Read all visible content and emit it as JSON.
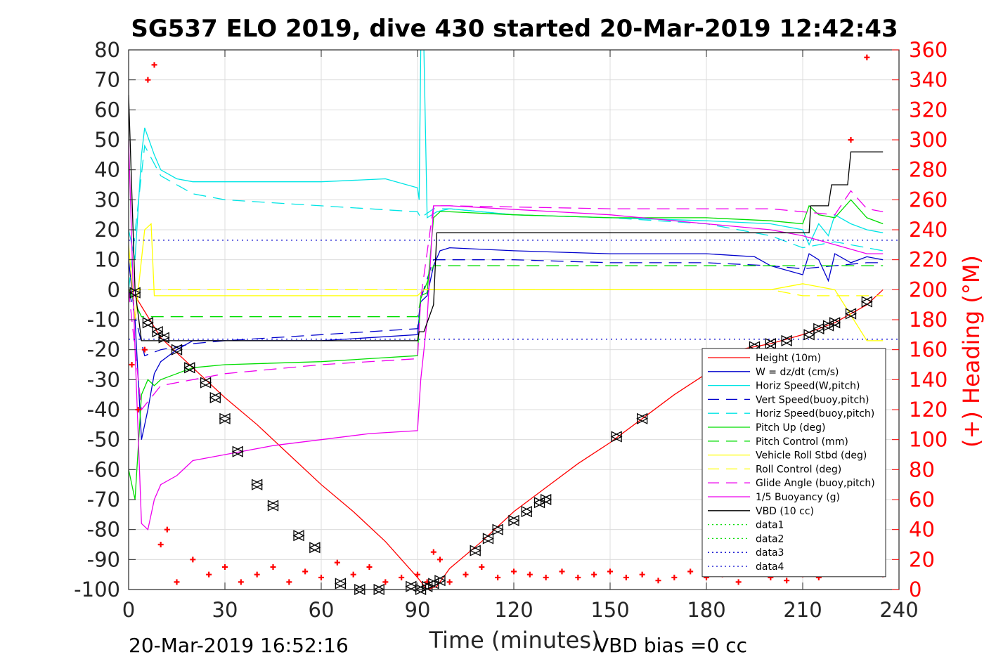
{
  "chart_data": {
    "type": "line",
    "title": "SG537 ELO 2019, dive 430 started 20-Mar-2019 12:42:43",
    "xlabel": "Time (minutes)",
    "ylabel_right": "(+) Heading (°M)",
    "xlim": [
      0,
      240
    ],
    "ylim": [
      -100,
      80
    ],
    "ylim_right": [
      0,
      360
    ],
    "grid": true,
    "legend_position": "lower-right",
    "x_ticks": [
      "0",
      "30",
      "60",
      "90",
      "120",
      "150",
      "180",
      "210",
      "240"
    ],
    "y_ticks_left": [
      "80",
      "70",
      "60",
      "50",
      "40",
      "30",
      "20",
      "10",
      "0",
      "-10",
      "-20",
      "-30",
      "-40",
      "-50",
      "-60",
      "-70",
      "-80",
      "-90",
      "-100"
    ],
    "y_ticks_right": [
      "360",
      "340",
      "320",
      "300",
      "280",
      "260",
      "240",
      "220",
      "200",
      "180",
      "160",
      "140",
      "120",
      "100",
      "80",
      "60",
      "40",
      "20",
      "0"
    ],
    "series": [
      {
        "name": "Height (10m)",
        "color": "#ff0000",
        "style": "solid",
        "x": [
          0,
          2,
          10,
          20,
          30,
          40,
          50,
          60,
          70,
          80,
          90,
          93,
          96,
          100,
          110,
          120,
          130,
          140,
          150,
          160,
          170,
          180,
          190,
          200,
          210,
          220,
          230,
          235
        ],
        "y": [
          0,
          -2,
          -16,
          -26,
          -36,
          -45,
          -55,
          -65,
          -74,
          -84,
          -96,
          -100,
          -99,
          -93,
          -84,
          -74,
          -66,
          -58,
          -51,
          -43,
          -35,
          -28,
          -20,
          -18,
          -15,
          -11,
          -5,
          0
        ]
      },
      {
        "name": "W = dz/dt (cm/s)",
        "color": "#0000cc",
        "style": "solid",
        "x": [
          0,
          2,
          4,
          6,
          8,
          10,
          15,
          20,
          30,
          60,
          90,
          91,
          93,
          95,
          97,
          100,
          120,
          150,
          180,
          195,
          200,
          210,
          212,
          215,
          218,
          220,
          225,
          230,
          235
        ],
        "y": [
          10,
          -10,
          -50,
          -40,
          -28,
          -24,
          -20,
          -17,
          -17,
          -17,
          -15,
          -4,
          -2,
          8,
          13,
          14,
          13,
          12,
          12,
          11,
          8,
          5,
          12,
          10,
          3,
          12,
          9,
          11,
          10
        ]
      },
      {
        "name": "Horiz Speed(W,pitch)",
        "color": "#00e5e5",
        "style": "solid",
        "x": [
          0,
          2,
          4,
          5,
          8,
          10,
          15,
          20,
          30,
          60,
          80,
          90,
          90.5,
          91,
          92,
          93,
          96,
          100,
          120,
          150,
          180,
          200,
          210,
          212,
          215,
          218,
          220,
          225,
          230,
          235
        ],
        "y": [
          20,
          10,
          45,
          54,
          45,
          40,
          37,
          36,
          36,
          36,
          37,
          34,
          30,
          80,
          80,
          24,
          26,
          27,
          25,
          24,
          23,
          22,
          20,
          15,
          22,
          18,
          25,
          22,
          20,
          19
        ]
      },
      {
        "name": "Vert Speed(buoy,pitch)",
        "color": "#0000cc",
        "style": "dashed",
        "x": [
          0,
          5,
          10,
          20,
          30,
          60,
          90,
          91,
          95,
          100,
          120,
          150,
          180,
          200,
          210,
          220,
          230,
          235
        ],
        "y": [
          0,
          -22,
          -20,
          -18,
          -17,
          -15,
          -13,
          -3,
          10,
          10,
          10,
          9,
          9,
          8,
          7,
          8,
          9,
          9
        ]
      },
      {
        "name": "Horiz Speed(buoy,pitch)",
        "color": "#00e5e5",
        "style": "dashed",
        "x": [
          0,
          5,
          10,
          20,
          30,
          60,
          90,
          91,
          95,
          100,
          120,
          150,
          180,
          200,
          210,
          220,
          230,
          235
        ],
        "y": [
          0,
          48,
          38,
          32,
          30,
          28,
          26,
          24,
          27,
          27,
          25,
          24,
          22,
          18,
          14,
          16,
          14,
          13
        ]
      },
      {
        "name": "Pitch Up (deg)",
        "color": "#00dd00",
        "style": "solid",
        "x": [
          0,
          2,
          4,
          6,
          8,
          10,
          15,
          20,
          30,
          60,
          90,
          91,
          93,
          95,
          97,
          100,
          120,
          150,
          180,
          200,
          210,
          212,
          215,
          220,
          225,
          230,
          235
        ],
        "y": [
          -60,
          -70,
          -35,
          -30,
          -32,
          -30,
          -28,
          -26,
          -25,
          -24,
          -22,
          -2,
          -1,
          24,
          26,
          26,
          25,
          24,
          24,
          23,
          22,
          28,
          25,
          24,
          30,
          24,
          22
        ]
      },
      {
        "name": "Pitch Control (mm)",
        "color": "#00dd00",
        "style": "dashed",
        "x": [
          0,
          4,
          10,
          20,
          60,
          90,
          91,
          95,
          100,
          150,
          200,
          210,
          220,
          235
        ],
        "y": [
          0,
          -9,
          -9,
          -9,
          -9,
          -9,
          -3,
          8,
          8,
          8,
          8,
          8,
          8,
          8
        ]
      },
      {
        "name": "Vehicle Roll Stbd (deg)",
        "color": "#ffff00",
        "style": "solid",
        "x": [
          0,
          2,
          3,
          5,
          7,
          8,
          10,
          15,
          20,
          30,
          60,
          90,
          92,
          95,
          100,
          150,
          200,
          210,
          220,
          230,
          235
        ],
        "y": [
          15,
          -10,
          0,
          20,
          22,
          -2,
          -2,
          -2,
          -2,
          -2,
          -2,
          -2,
          0,
          0,
          0,
          0,
          0,
          2,
          0,
          -17,
          -17
        ]
      },
      {
        "name": "Roll Control (deg)",
        "color": "#ffff00",
        "style": "dashed",
        "x": [
          0,
          20,
          60,
          90,
          95,
          150,
          200,
          210,
          235
        ],
        "y": [
          0,
          0,
          0,
          0,
          0,
          0,
          0,
          -2,
          -2
        ]
      },
      {
        "name": "Glide Angle (buoy,pitch)",
        "color": "#ee00ee",
        "style": "dashed",
        "x": [
          0,
          4,
          10,
          20,
          30,
          60,
          90,
          91,
          95,
          100,
          150,
          200,
          210,
          220,
          225,
          230,
          235
        ],
        "y": [
          0,
          -40,
          -32,
          -30,
          -28,
          -25,
          -23,
          -3,
          28,
          28,
          27,
          27,
          26,
          25,
          33,
          27,
          26
        ]
      },
      {
        "name": "1/5 Buoyancy (g)",
        "color": "#ee00ee",
        "style": "solid",
        "x": [
          0,
          2,
          4,
          6,
          8,
          10,
          15,
          20,
          30,
          45,
          60,
          75,
          90,
          91,
          93,
          95,
          100,
          150,
          200,
          210,
          220,
          230,
          235
        ],
        "y": [
          50,
          -20,
          -78,
          -80,
          -70,
          -65,
          -62,
          -57,
          -55,
          -52,
          -50,
          -48,
          -47,
          -30,
          -10,
          28,
          28,
          25,
          20,
          18,
          15,
          12,
          12
        ]
      },
      {
        "name": "VBD (10 cc)",
        "color": "#000000",
        "style": "solid",
        "x": [
          0,
          2,
          4,
          20,
          90,
          90.5,
          92,
          95,
          96,
          120,
          150,
          180,
          205,
          212,
          212.5,
          218,
          219,
          224,
          225,
          230,
          235
        ],
        "y": [
          65,
          0,
          -17,
          -17,
          -17,
          -14,
          -14,
          -5,
          19,
          19,
          19,
          19,
          19,
          19,
          28,
          28,
          35,
          35,
          46,
          46,
          46
        ]
      },
      {
        "name": "data1",
        "color": "#00dd00",
        "style": "dotted",
        "x": [],
        "y": []
      },
      {
        "name": "data2",
        "color": "#00dd00",
        "style": "dotted",
        "x": [],
        "y": []
      },
      {
        "name": "data3",
        "color": "#0000cc",
        "style": "dotted",
        "x": [
          0,
          240
        ],
        "y": [
          16.5,
          16.5
        ]
      },
      {
        "name": "data4",
        "color": "#0000cc",
        "style": "dotted",
        "x": [
          0,
          240
        ],
        "y": [
          -16.5,
          -16.5
        ]
      }
    ],
    "heading": {
      "axis": "right",
      "color": "#ff0000",
      "marker": "+",
      "x": [
        1,
        3,
        5,
        6,
        8,
        10,
        12,
        15,
        20,
        25,
        30,
        35,
        40,
        45,
        50,
        55,
        60,
        65,
        70,
        75,
        80,
        85,
        90,
        93,
        95,
        97,
        100,
        105,
        110,
        115,
        120,
        125,
        130,
        135,
        140,
        145,
        150,
        155,
        160,
        165,
        170,
        175,
        180,
        185,
        190,
        195,
        200,
        205,
        210,
        215,
        220,
        225,
        230,
        235
      ],
      "y": [
        150,
        120,
        160,
        340,
        350,
        30,
        40,
        5,
        20,
        10,
        15,
        5,
        10,
        15,
        5,
        12,
        8,
        18,
        10,
        15,
        5,
        8,
        10,
        5,
        25,
        20,
        5,
        10,
        15,
        8,
        12,
        10,
        8,
        12,
        8,
        10,
        12,
        8,
        10,
        6,
        8,
        12,
        8,
        10,
        5,
        12,
        8,
        6,
        10,
        8,
        15,
        300,
        355,
        10
      ]
    },
    "markers": {
      "color": "#000000",
      "shape": "triangle",
      "x": [
        2,
        6,
        9,
        11,
        15,
        19,
        24,
        27,
        30,
        34,
        40,
        45,
        53,
        58,
        66,
        72,
        78,
        88,
        91,
        93,
        95,
        97,
        108,
        112,
        115,
        120,
        124,
        128,
        130,
        152,
        160,
        195,
        200,
        205,
        212,
        215,
        218,
        220,
        225,
        230
      ],
      "y": [
        -1,
        -11,
        -14,
        -16,
        -20,
        -26,
        -31,
        -36,
        -43,
        -54,
        -65,
        -72,
        -82,
        -86,
        -98,
        -100,
        -100,
        -99,
        -100,
        -99,
        -98,
        -97,
        -87,
        -83,
        -80,
        -77,
        -74,
        -71,
        -70,
        -49,
        -43,
        -19,
        -18,
        -17,
        -15,
        -13,
        -12,
        -11,
        -8,
        -4
      ]
    },
    "footer_left": "20-Mar-2019 16:52:16",
    "footer_right": "VBD bias =0 cc"
  }
}
